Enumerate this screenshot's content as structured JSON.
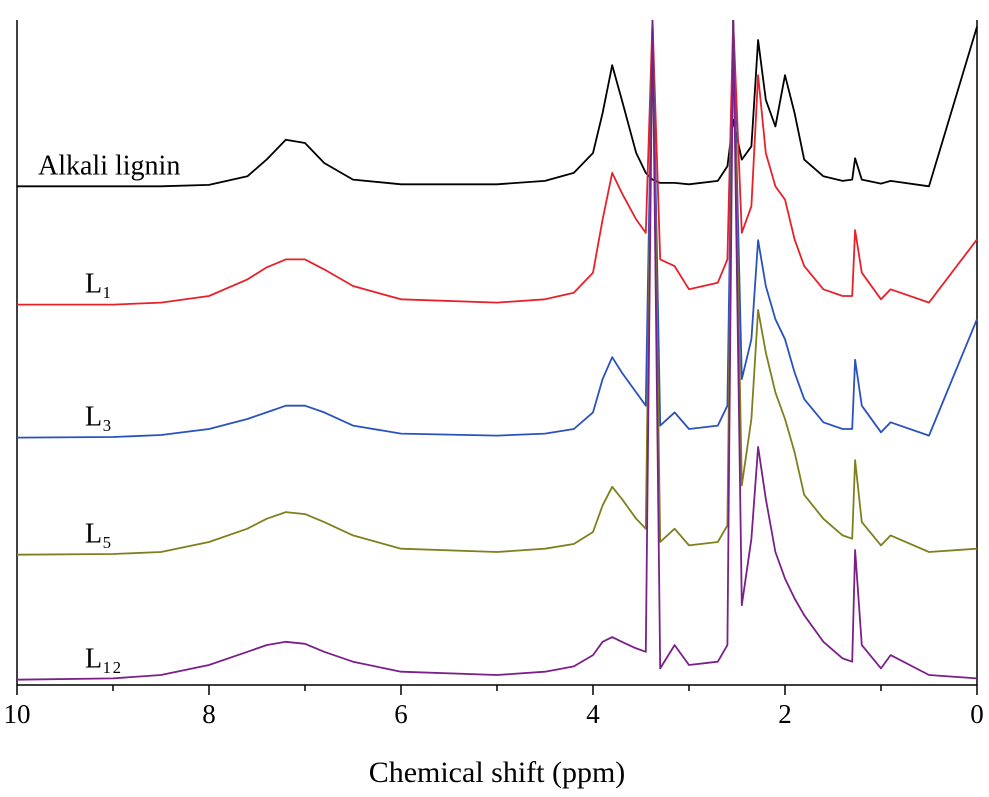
{
  "chart_data": {
    "type": "line",
    "x_label": "Chemical shift (ppm)",
    "xlim": [
      10,
      0
    ],
    "xticks": [
      10,
      8,
      6,
      4,
      2,
      0
    ],
    "xminorticks": [
      9,
      7,
      5,
      3,
      1
    ],
    "ylim": [
      0,
      100
    ],
    "x": [
      10,
      9,
      8.5,
      8,
      7.6,
      7.4,
      7.2,
      7.0,
      6.8,
      6.5,
      6,
      5,
      4.5,
      4.2,
      4.0,
      3.9,
      3.8,
      3.7,
      3.55,
      3.45,
      3.38,
      3.3,
      3.15,
      3.0,
      2.7,
      2.6,
      2.54,
      2.45,
      2.35,
      2.28,
      2.2,
      2.1,
      2.0,
      1.9,
      1.8,
      1.6,
      1.4,
      1.3,
      1.27,
      1.2,
      1.0,
      0.9,
      0.5,
      0.0
    ],
    "series": [
      {
        "name": "Alkali lignin",
        "color": "#000000",
        "values": [
          75,
          75,
          75,
          75.2,
          76.5,
          79,
          82,
          81.5,
          78.5,
          76,
          75.3,
          75.3,
          75.8,
          77,
          80,
          86,
          93.2,
          88,
          80,
          77,
          76,
          75.5,
          75.5,
          75.3,
          75.8,
          78,
          85,
          79,
          81,
          97,
          88,
          84,
          91.7,
          86,
          79,
          76.5,
          75.8,
          76,
          79.2,
          76,
          75.4,
          75.8,
          75,
          99
        ]
      },
      {
        "name": "L₁",
        "color": "#e8202a",
        "values": [
          57.2,
          57.2,
          57.5,
          58.5,
          61,
          62.8,
          64,
          64,
          62.5,
          60,
          58,
          57.5,
          58,
          59,
          62,
          70,
          77,
          74,
          70,
          68,
          100,
          64,
          63,
          59.5,
          60.5,
          64,
          100,
          68,
          72,
          91.7,
          80,
          75,
          73,
          67,
          63,
          59.5,
          58.5,
          58.5,
          68.4,
          62,
          58,
          59.5,
          57.5,
          67
        ]
      },
      {
        "name": "L₃",
        "color": "#2a52be",
        "values": [
          37.2,
          37.3,
          37.6,
          38.5,
          40,
          41,
          42,
          42,
          41,
          39,
          37.8,
          37.5,
          37.8,
          38.5,
          41,
          46,
          49.3,
          47,
          44,
          42,
          100,
          39,
          41,
          38.5,
          39,
          42,
          100,
          46,
          52,
          66.9,
          60,
          55,
          52,
          47,
          43,
          39.5,
          38.5,
          38.5,
          48.9,
          42,
          38,
          39.5,
          37.5,
          55
        ]
      },
      {
        "name": "L₅",
        "color": "#7f7f1e",
        "values": [
          19.6,
          19.7,
          20,
          21.5,
          23.5,
          25,
          26,
          25.7,
          24.5,
          22.5,
          20.5,
          20,
          20.5,
          21.2,
          23,
          27,
          29.8,
          28,
          25,
          23.5,
          100,
          21.5,
          23.5,
          21,
          21.5,
          24,
          100,
          30,
          40,
          56.4,
          50,
          44,
          40,
          35,
          28.6,
          25,
          22.5,
          22,
          33.8,
          24.5,
          21,
          22.5,
          20,
          20.5
        ]
      },
      {
        "name": "L₁₂",
        "color": "#7b1f8a",
        "values": [
          0.8,
          1,
          1.5,
          3,
          5,
          6,
          6.5,
          6.2,
          5,
          3.5,
          2,
          1.5,
          2,
          2.8,
          4.5,
          6.5,
          7.2,
          6.5,
          5.5,
          5,
          100,
          2.5,
          6,
          3,
          3.5,
          6,
          100,
          12,
          22,
          35.8,
          28,
          20,
          16,
          13,
          10.5,
          6.5,
          4,
          3.5,
          20.3,
          6,
          2.5,
          4.5,
          1.5,
          1
        ]
      }
    ]
  }
}
